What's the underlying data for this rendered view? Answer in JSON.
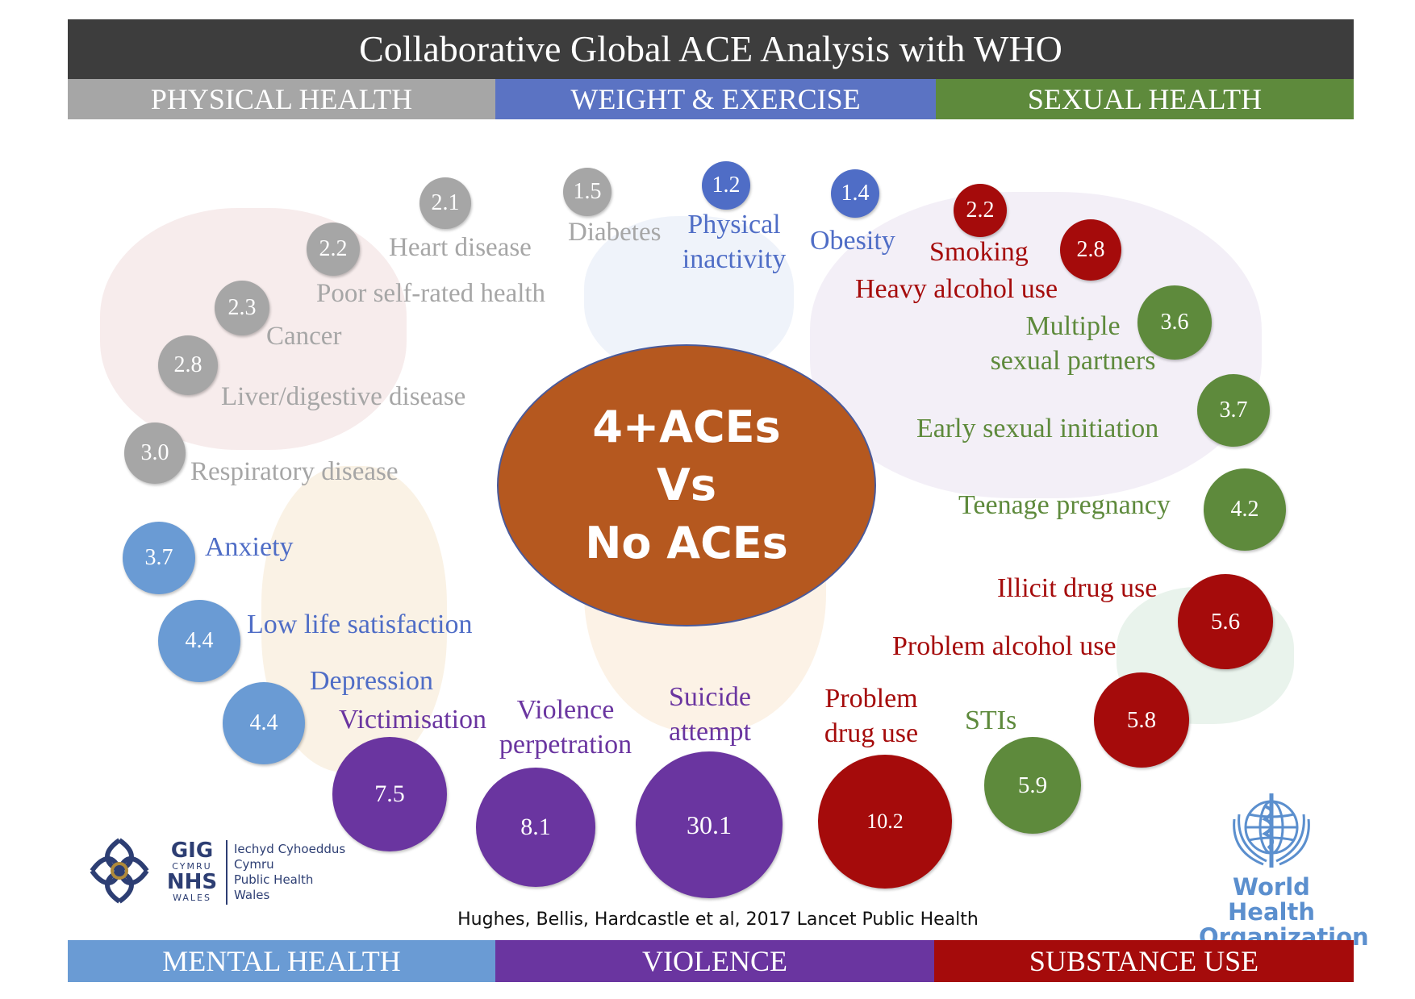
{
  "title": "Collaborative Global ACE Analysis with WHO",
  "categories_top": [
    {
      "label": "PHYSICAL HEALTH",
      "color": "#a6a6a6"
    },
    {
      "label": "WEIGHT & EXERCISE",
      "color": "#5b73c3"
    },
    {
      "label": "SEXUAL HEALTH",
      "color": "#5e8a3c"
    }
  ],
  "categories_bottom": [
    {
      "label": "MENTAL HEALTH",
      "color": "#6a9bd4"
    },
    {
      "label": "VIOLENCE",
      "color": "#6a35a0"
    },
    {
      "label": "SUBSTANCE USE",
      "color": "#a50b0b"
    }
  ],
  "center": {
    "line1": "4+ACEs",
    "line2": "Vs",
    "line3": "No ACEs"
  },
  "outcomes": [
    {
      "label": "Diabetes",
      "value": "1.5",
      "category": "physical"
    },
    {
      "label": "Heart disease",
      "value": "2.1",
      "category": "physical"
    },
    {
      "label": "Poor self-rated health",
      "value": "2.2",
      "category": "physical"
    },
    {
      "label": "Cancer",
      "value": "2.3",
      "category": "physical"
    },
    {
      "label": "Liver/digestive disease",
      "value": "2.8",
      "category": "physical"
    },
    {
      "label": "Respiratory disease",
      "value": "3.0",
      "category": "physical"
    },
    {
      "label": "Physical inactivity",
      "label_line1": "Physical",
      "label_line2": "inactivity",
      "value": "1.2",
      "category": "weight"
    },
    {
      "label": "Obesity",
      "value": "1.4",
      "category": "weight"
    },
    {
      "label": "Smoking",
      "value": "2.2",
      "category": "substance"
    },
    {
      "label": "Heavy alcohol use",
      "value": "2.8",
      "category": "substance"
    },
    {
      "label": "Multiple sexual partners",
      "label_line1": "Multiple",
      "label_line2": "sexual partners",
      "value": "3.6",
      "category": "sexual"
    },
    {
      "label": "Early sexual initiation",
      "value": "3.7",
      "category": "sexual"
    },
    {
      "label": "Teenage pregnancy",
      "value": "4.2",
      "category": "sexual"
    },
    {
      "label": "Illicit drug use",
      "value": "5.6",
      "category": "substance"
    },
    {
      "label": "Problem alcohol use",
      "value": "5.8",
      "category": "substance"
    },
    {
      "label": "STIs",
      "value": "5.9",
      "category": "sexual"
    },
    {
      "label": "Problem drug use",
      "label_line1": "Problem",
      "label_line2": "drug use",
      "value": "10.2",
      "category": "substance"
    },
    {
      "label": "Suicide attempt",
      "label_line1": "Suicide",
      "label_line2": "attempt",
      "value": "30.1",
      "category": "violence"
    },
    {
      "label": "Violence perpetration",
      "label_line1": "Violence",
      "label_line2": "perpetration",
      "value": "8.1",
      "category": "violence"
    },
    {
      "label": "Victimisation",
      "value": "7.5",
      "category": "violence"
    },
    {
      "label": "Depression",
      "value": "4.4",
      "category": "mental"
    },
    {
      "label": "Low life satisfaction",
      "value": "4.4",
      "category": "mental"
    },
    {
      "label": "Anxiety",
      "value": "3.7",
      "category": "mental"
    }
  ],
  "colors": {
    "physical": "#a6a6a6",
    "weight": "#4f6dc6",
    "sexual": "#5e8a3c",
    "substance": "#a50b0b",
    "violence": "#6a35a0",
    "mental": "#6a9bd4",
    "center": "#b5581f"
  },
  "citation": "Hughes, Bellis, Hardcastle et al, 2017 Lancet Public Health",
  "logos": {
    "nhs": {
      "gig": "GIG",
      "cymru": "CYMRU",
      "nhs": "NHS",
      "wales": "WALES",
      "right_line1": "Iechyd Cyhoeddus",
      "right_line2": "Cymru",
      "right_line3": "Public Health",
      "right_line4": "Wales"
    },
    "who": {
      "line1": "World Health",
      "line2": "Organization"
    }
  }
}
